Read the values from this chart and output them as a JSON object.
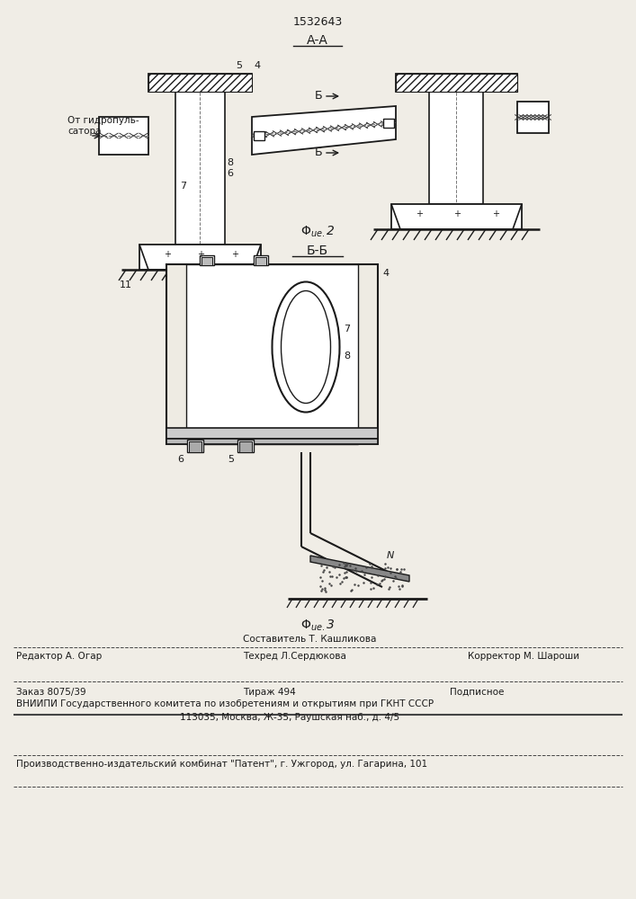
{
  "patent_number": "1532643",
  "section_aa": "А-А",
  "section_bb": "Б-Б",
  "bg_color": "#f0ede6",
  "line_color": "#1a1a1a",
  "label_ot_gidro": "От гидропуль-\nсатора",
  "footer_editor": "Редактор А. Огар",
  "footer_composer": "Составитель Т. Кашликова",
  "footer_techred": "Техред Л.Сердюкова",
  "footer_corrector": "Корректор М. Шароши",
  "footer_order": "Заказ 8075/39",
  "footer_print": "Тираж 494",
  "footer_subscription": "Подписное",
  "footer_vniip": "ВНИИПИ Государственного комитета по изобретениям и открытиям при ГКНТ СССР",
  "footer_address": "113035, Москва, Ж-35, Раушская наб., д. 4/5",
  "footer_plant": "Производственно-издательский комбинат \"Патент\", г. Ужгород, ул. Гагарина, 101"
}
